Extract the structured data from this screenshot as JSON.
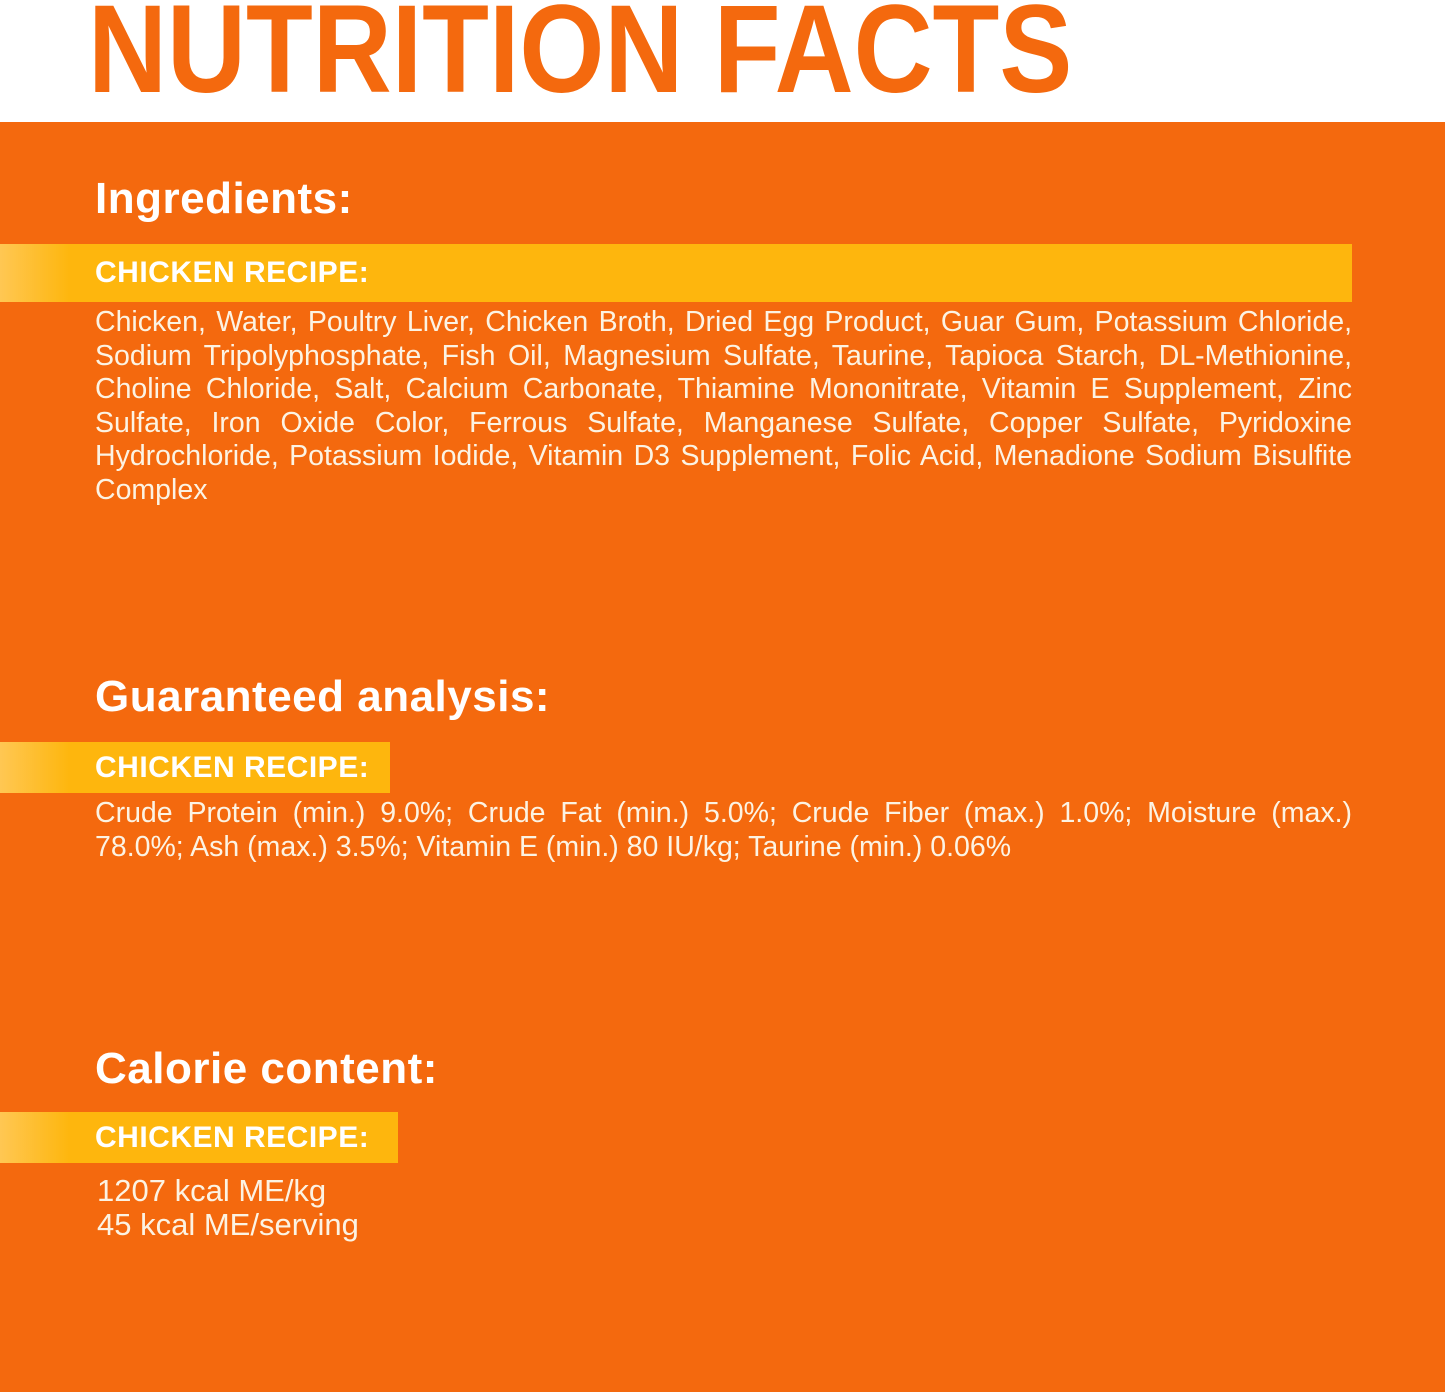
{
  "header": {
    "title": "NUTRITION FACTS"
  },
  "colors": {
    "background_orange": "#F4690E",
    "title_orange": "#F4690E",
    "header_background": "#FFFFFF",
    "band_gold": "#FEB60D",
    "band_gold_light_edge": "#FFC753",
    "heading_white": "#FFFFFF",
    "body_text_cream": "#FCF3E3"
  },
  "sections": [
    {
      "heading": "Ingredients:",
      "band_label": "CHICKEN RECIPE:",
      "body": "Chicken, Water, Poultry Liver, Chicken Broth, Dried Egg Product, Guar Gum, Potassium Chloride, Sodium Tripolyphosphate, Fish Oil, Magnesium Sulfate, Taurine, Tapioca Starch, DL-Methionine, Choline Chloride, Salt, Calcium Carbonate, Thiamine Mononitrate, Vitamin E Supplement, Zinc Sulfate, Iron Oxide Color, Ferrous Sulfate, Manganese Sulfate, Copper Sulfate, Pyridoxine Hydrochloride, Potassium Iodide, Vitamin D3 Supplement, Folic Acid, Menadione Sodium Bisulfite Complex"
    },
    {
      "heading": "Guaranteed analysis:",
      "band_label": "CHICKEN RECIPE:",
      "body": "Crude Protein (min.) 9.0%; Crude Fat (min.) 5.0%; Crude Fiber (max.) 1.0%; Moisture (max.) 78.0%; Ash (max.) 3.5%; Vitamin E (min.) 80 IU/kg; Taurine (min.) 0.06%"
    },
    {
      "heading": "Calorie content:",
      "band_label": "CHICKEN RECIPE:",
      "lines": [
        "1207 kcal ME/kg",
        "45 kcal ME/serving"
      ]
    }
  ]
}
